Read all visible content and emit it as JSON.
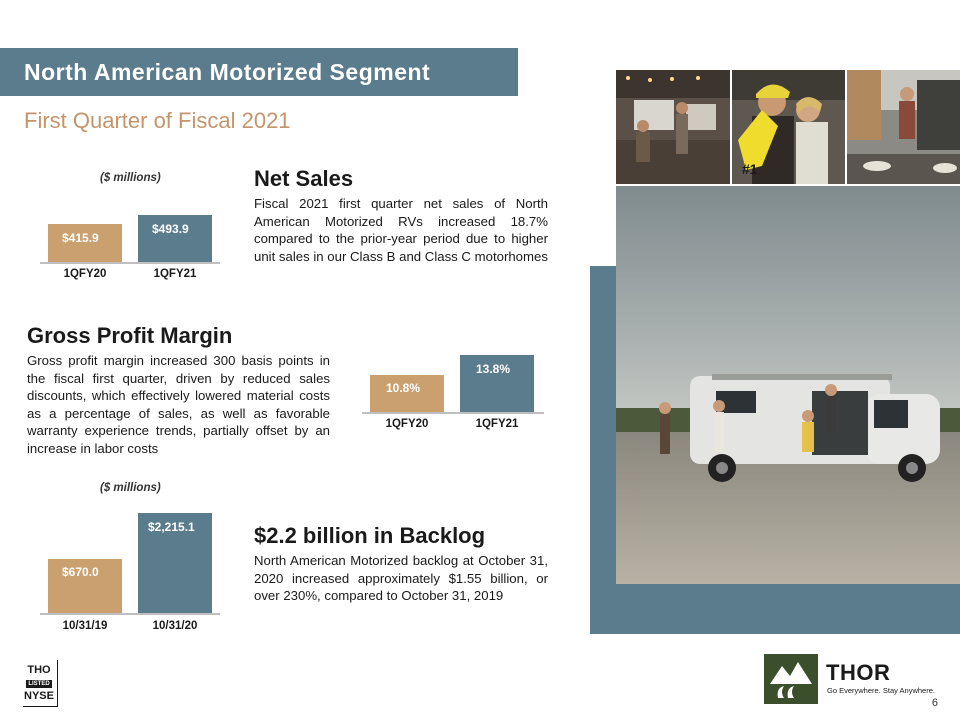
{
  "header": {
    "title": "North American Motorized Segment",
    "subtitle": "First Quarter of Fiscal 2021"
  },
  "net_sales": {
    "heading": "Net Sales",
    "body": "Fiscal 2021 first quarter net sales of North American Motorized RVs increased 18.7% compared to the prior-year period due to higher unit sales in our Class B and Class C motorhomes"
  },
  "gross_margin": {
    "heading": "Gross Profit Margin",
    "body": "Gross profit margin increased 300 basis points in the fiscal first quarter, driven by reduced sales discounts, which effectively lowered material costs as a percentage of sales, as well as favorable warranty experience trends, partially offset by an increase in labor costs"
  },
  "backlog": {
    "heading": "$2.2 billion in Backlog",
    "body": "North American Motorized backlog at October 31, 2020 increased approximately $1.55 billion, or over 230%, compared to October 31, 2019"
  },
  "chart_data": [
    {
      "type": "bar",
      "unit_label": "($ millions)",
      "categories": [
        "1QFY20",
        "1QFY21"
      ],
      "values": [
        415.9,
        493.9
      ],
      "value_labels": [
        "$415.9",
        "$493.9"
      ],
      "colors": [
        "#c9a06e",
        "#5b7c8d"
      ]
    },
    {
      "type": "bar",
      "categories": [
        "1QFY20",
        "1QFY21"
      ],
      "values": [
        10.8,
        13.8
      ],
      "value_labels": [
        "10.8%",
        "13.8%"
      ],
      "colors": [
        "#c9a06e",
        "#5b7c8d"
      ]
    },
    {
      "type": "bar",
      "unit_label": "($ millions)",
      "categories": [
        "10/31/19",
        "10/31/20"
      ],
      "values": [
        670.0,
        2215.1
      ],
      "value_labels": [
        "$670.0",
        "$2,215.1"
      ],
      "colors": [
        "#c9a06e",
        "#5b7c8d"
      ]
    }
  ],
  "footer": {
    "nyse_logo": [
      "THO",
      "LISTED",
      "NYSE"
    ],
    "brand_name": "THOR",
    "tagline": "Go Everywhere. Stay Anywhere.",
    "page_number": "6"
  },
  "colors": {
    "accent_blue": "#5b7c8d",
    "accent_tan": "#c9a06e",
    "brand_green": "#3c4f2c"
  }
}
